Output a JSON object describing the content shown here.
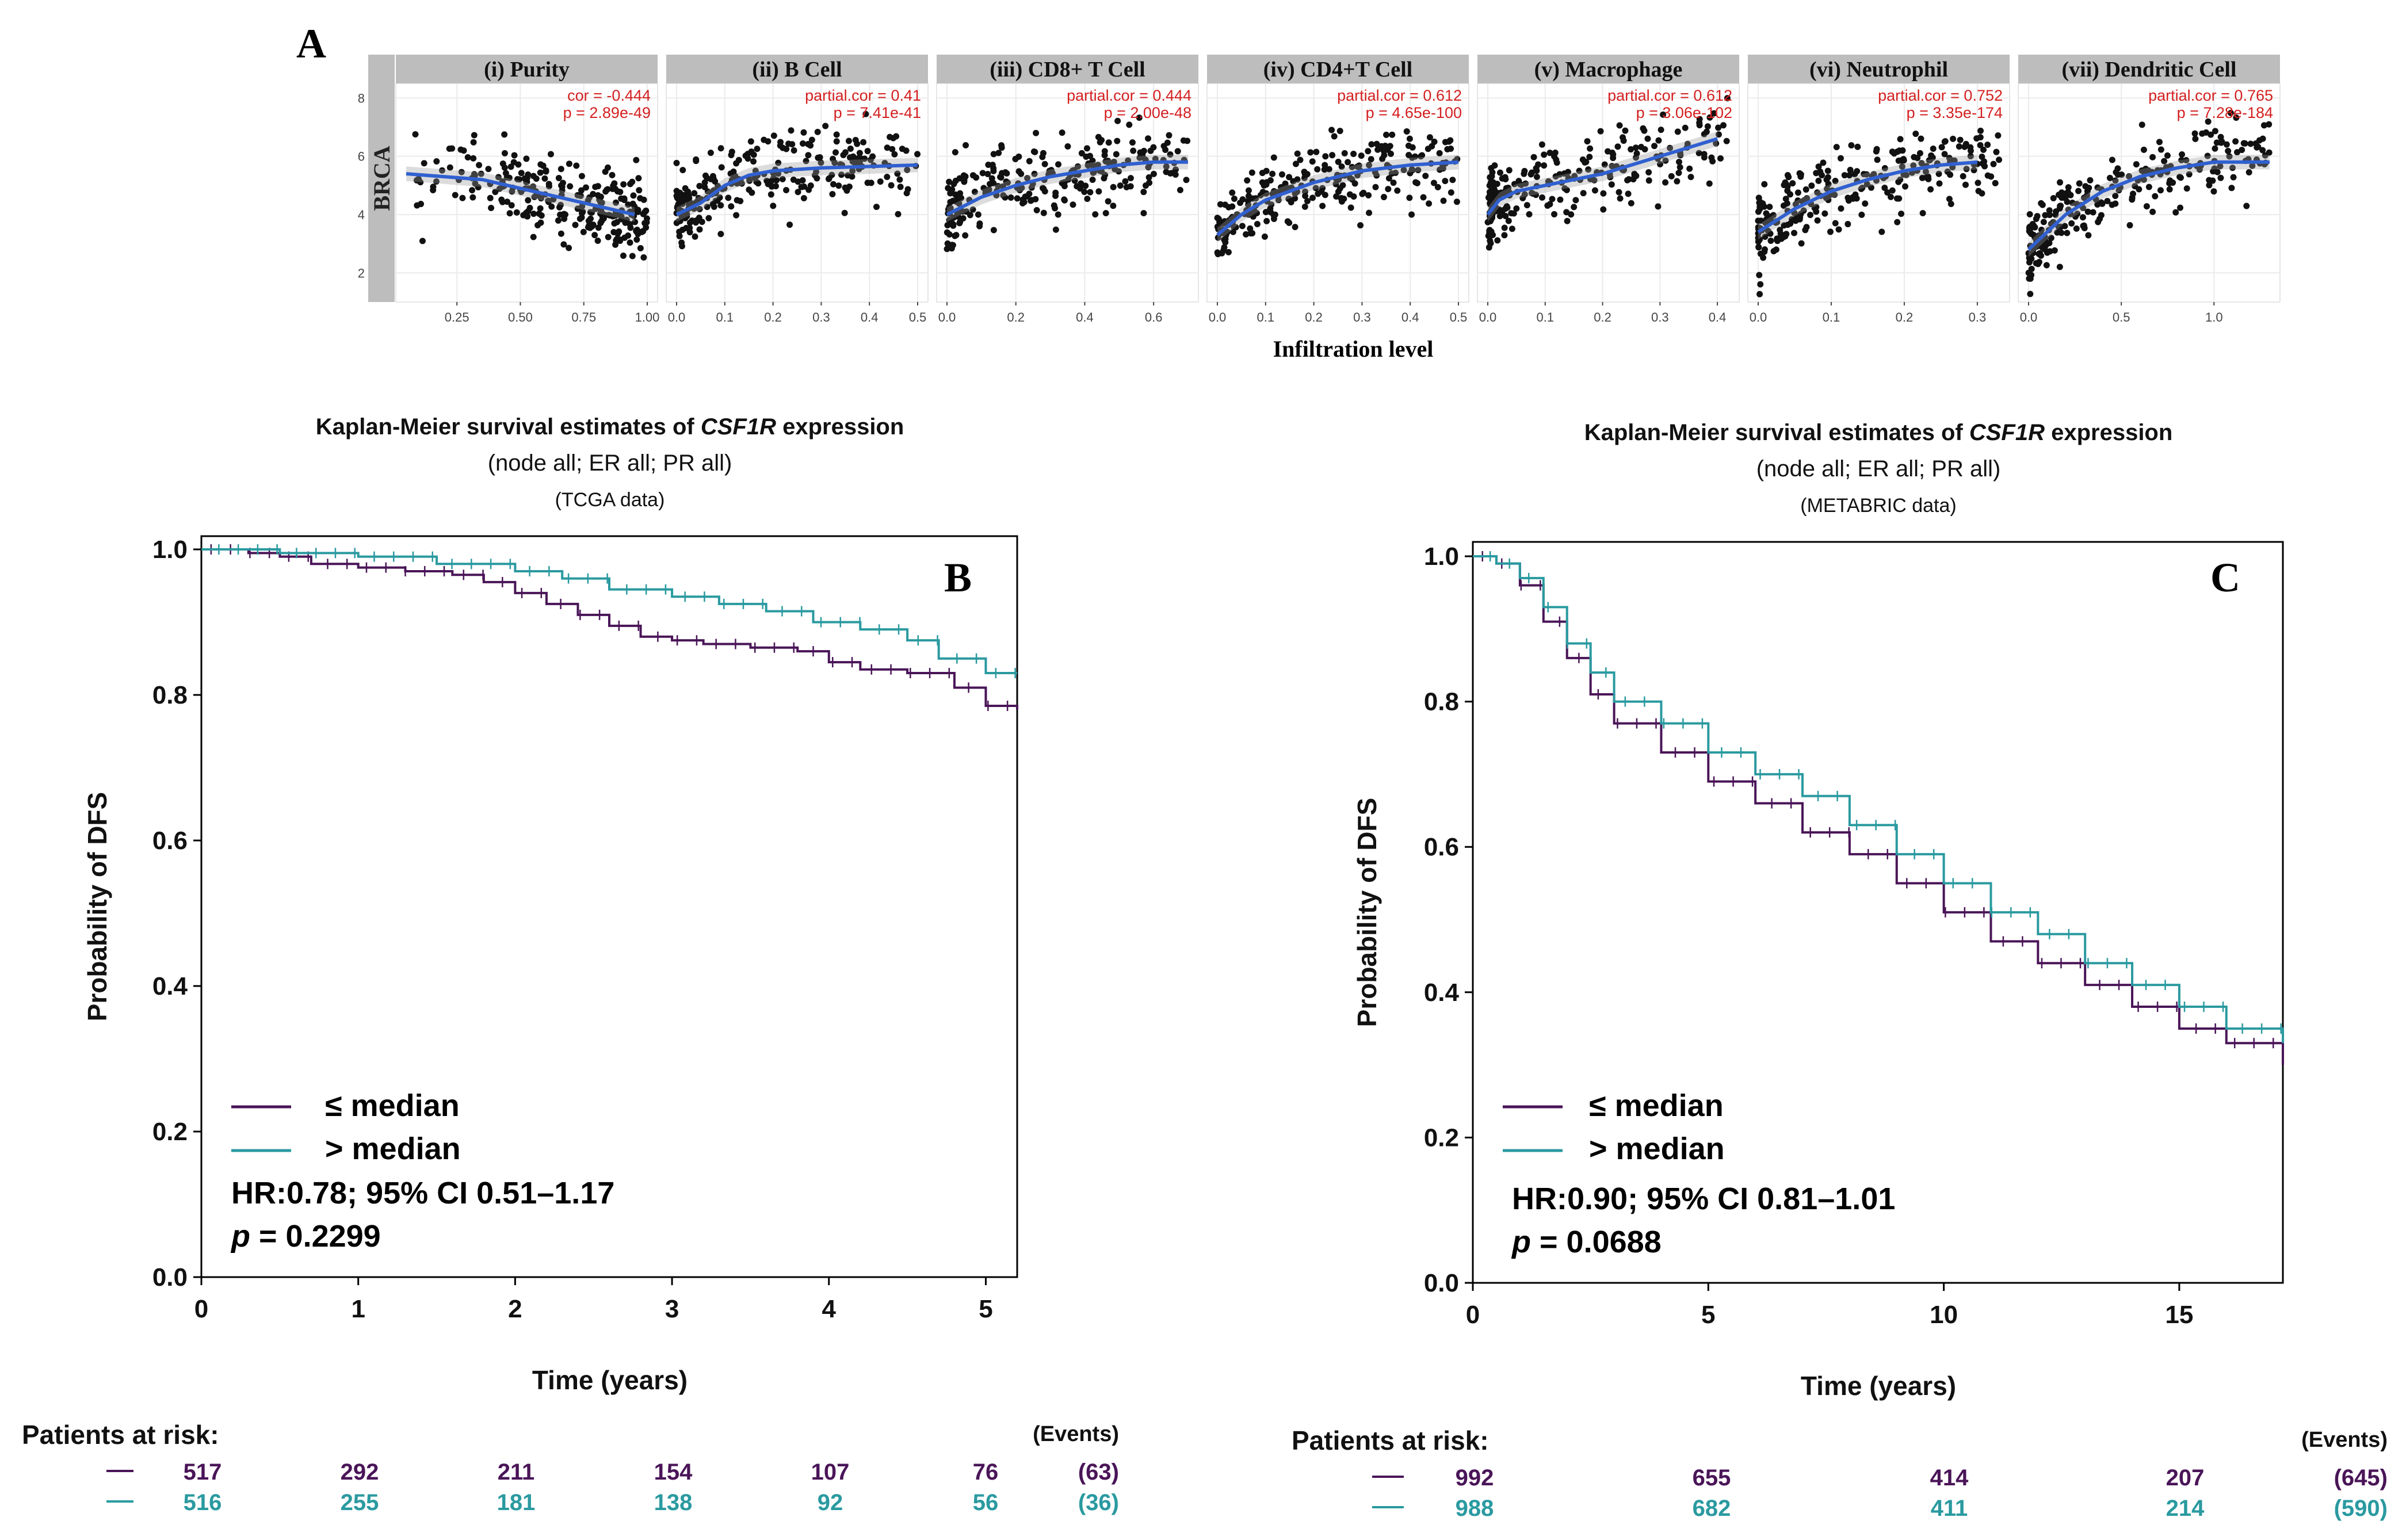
{
  "colors": {
    "low": "#4a1558",
    "high": "#2a9aa0",
    "fit": "#3060d0",
    "points": "#111111",
    "strip": "#bdbdbd",
    "corr_text": "#d42020",
    "grid": "#ebebeb"
  },
  "panel_a": {
    "letter": "A",
    "row_label": "BRCA",
    "xlabel": "Infiltration level",
    "y_ticks": [
      "2",
      "4",
      "6",
      "8"
    ],
    "panels": [
      {
        "title": "(i) Purity",
        "stat_label": "cor = -0.444",
        "p_label": "p = 2.89e-49",
        "x_ticks": [
          "0.25",
          "0.50",
          "0.75",
          "1.00"
        ],
        "xlim": [
          0.05,
          1.0
        ]
      },
      {
        "title": "(ii) B Cell",
        "stat_label": "partial.cor = 0.41",
        "p_label": "p = 7.41e-41",
        "x_ticks": [
          "0.0",
          "0.1",
          "0.2",
          "0.3",
          "0.4",
          "0.5"
        ],
        "xlim": [
          0.0,
          0.5
        ]
      },
      {
        "title": "(iii) CD8+ T Cell",
        "stat_label": "partial.cor = 0.444",
        "p_label": "p = 2.00e-48",
        "x_ticks": [
          "0.0",
          "0.2",
          "0.4",
          "0.6"
        ],
        "xlim": [
          0.0,
          0.7
        ]
      },
      {
        "title": "(iv) CD4+T Cell",
        "stat_label": "partial.cor = 0.612",
        "p_label": "p = 4.65e-100",
        "x_ticks": [
          "0.0",
          "0.1",
          "0.2",
          "0.3",
          "0.4",
          "0.5"
        ],
        "xlim": [
          0.0,
          0.5
        ]
      },
      {
        "title": "(v) Macrophage",
        "stat_label": "partial.cor = 0.612",
        "p_label": "p = 3.06e-102",
        "x_ticks": [
          "0.0",
          "0.1",
          "0.2",
          "0.3",
          "0.4"
        ],
        "xlim": [
          0.0,
          0.42
        ]
      },
      {
        "title": "(vi) Neutrophil",
        "stat_label": "partial.cor = 0.752",
        "p_label": "p = 3.35e-174",
        "x_ticks": [
          "0.0",
          "0.1",
          "0.2",
          "0.3"
        ],
        "xlim": [
          0.0,
          0.33
        ]
      },
      {
        "title": "(vii) Dendritic Cell",
        "stat_label": "partial.cor = 0.765",
        "p_label": "p = 7.28e-184",
        "x_ticks": [
          "0.0",
          "0.5",
          "1.0"
        ],
        "xlim": [
          0.0,
          1.3
        ]
      }
    ]
  },
  "panel_b": {
    "letter": "B",
    "title_prefix": "Kaplan-Meier survival estimates of ",
    "title_gene": "CSF1R",
    "title_suffix": " expression",
    "subtitle": "(node all; ER all; PR all)",
    "source": "(TCGA data)",
    "ylabel": "Probability of DFS",
    "xlabel": "Time (years)",
    "legend_low": "≤  median",
    "legend_high": "> median",
    "hr_text": "HR:0.78; 95% CI 0.51–1.17",
    "p_prefix": "p",
    "p_text": " = 0.2299",
    "risk_title": "Patients at risk:",
    "events_label": "(Events)",
    "low_risk": [
      "517",
      "292",
      "211",
      "154",
      "107",
      "76"
    ],
    "low_events": "(63)",
    "high_risk": [
      "516",
      "255",
      "181",
      "138",
      "92",
      "56"
    ],
    "high_events": "(36)"
  },
  "panel_c": {
    "letter": "C",
    "title_prefix": "Kaplan-Meier survival estimates of ",
    "title_gene": "CSF1R",
    "title_suffix": " expression",
    "subtitle": "(node all; ER all; PR all)",
    "source": "(METABRIC data)",
    "ylabel": "Probability of DFS",
    "xlabel": "Time (years)",
    "legend_low": "≤  median",
    "legend_high": "> median",
    "hr_text": "HR:0.90; 95% CI 0.81–1.01",
    "p_prefix": "p",
    "p_text": " = 0.0688",
    "risk_title": "Patients at risk:",
    "events_label": "(Events)",
    "low_risk": [
      "992",
      "655",
      "414",
      "207"
    ],
    "low_events": "(645)",
    "high_risk": [
      "988",
      "682",
      "411",
      "214"
    ],
    "high_events": "(590)"
  },
  "chart_data": [
    {
      "type": "scatter",
      "title": "(i) Purity",
      "xlabel": "Infiltration level",
      "ylabel": "BRCA",
      "xlim": [
        0.05,
        1.0
      ],
      "ylim": [
        1,
        8.5
      ],
      "fit": {
        "x": [
          0.05,
          0.2,
          0.35,
          0.5,
          0.65,
          0.8,
          0.95
        ],
        "y": [
          5.4,
          5.3,
          5.2,
          4.9,
          4.6,
          4.3,
          4.0
        ]
      },
      "cor": -0.444,
      "p": "2.89e-49"
    },
    {
      "type": "scatter",
      "title": "(ii) B Cell",
      "xlabel": "Infiltration level",
      "ylabel": "BRCA",
      "xlim": [
        0.0,
        0.5
      ],
      "ylim": [
        1,
        8.5
      ],
      "fit": {
        "x": [
          0.0,
          0.05,
          0.1,
          0.15,
          0.2,
          0.3,
          0.4,
          0.5
        ],
        "y": [
          4.0,
          4.4,
          5.0,
          5.35,
          5.5,
          5.6,
          5.65,
          5.7
        ]
      },
      "partial_cor": 0.41,
      "p": "7.41e-41"
    },
    {
      "type": "scatter",
      "title": "(iii) CD8+ T Cell",
      "xlabel": "Infiltration level",
      "ylabel": "BRCA",
      "xlim": [
        0.0,
        0.7
      ],
      "ylim": [
        1,
        8.5
      ],
      "fit": {
        "x": [
          0.0,
          0.1,
          0.2,
          0.3,
          0.4,
          0.5,
          0.6,
          0.7
        ],
        "y": [
          4.0,
          4.6,
          5.0,
          5.3,
          5.5,
          5.7,
          5.8,
          5.8
        ]
      },
      "partial_cor": 0.444,
      "p": "2.00e-48"
    },
    {
      "type": "scatter",
      "title": "(iv) CD4+T Cell",
      "xlabel": "Infiltration level",
      "ylabel": "BRCA",
      "xlim": [
        0.0,
        0.5
      ],
      "ylim": [
        1,
        8.5
      ],
      "fit": {
        "x": [
          0.0,
          0.05,
          0.1,
          0.2,
          0.3,
          0.4,
          0.5
        ],
        "y": [
          3.3,
          4.0,
          4.5,
          5.1,
          5.5,
          5.7,
          5.8
        ]
      },
      "partial_cor": 0.612,
      "p": "4.65e-100"
    },
    {
      "type": "scatter",
      "title": "(v) Macrophage",
      "xlabel": "Infiltration level",
      "ylabel": "BRCA",
      "xlim": [
        0.0,
        0.42
      ],
      "ylim": [
        1,
        8.5
      ],
      "fit": {
        "x": [
          0.0,
          0.02,
          0.05,
          0.1,
          0.2,
          0.3,
          0.4
        ],
        "y": [
          4.0,
          4.5,
          4.8,
          5.0,
          5.4,
          6.0,
          6.6
        ]
      },
      "partial_cor": 0.612,
      "p": "3.06e-102"
    },
    {
      "type": "scatter",
      "title": "(vi) Neutrophil",
      "xlabel": "Infiltration level",
      "ylabel": "BRCA",
      "xlim": [
        0.0,
        0.33
      ],
      "ylim": [
        1,
        8.5
      ],
      "fit": {
        "x": [
          0.0,
          0.05,
          0.1,
          0.15,
          0.2,
          0.25,
          0.3
        ],
        "y": [
          3.4,
          4.2,
          4.8,
          5.2,
          5.5,
          5.7,
          5.8
        ]
      },
      "partial_cor": 0.752,
      "p": "3.35e-174"
    },
    {
      "type": "scatter",
      "title": "(vii) Dendritic Cell",
      "xlabel": "Infiltration level",
      "ylabel": "BRCA",
      "xlim": [
        0.0,
        1.3
      ],
      "ylim": [
        1,
        8.5
      ],
      "fit": {
        "x": [
          0.0,
          0.2,
          0.4,
          0.6,
          0.8,
          1.0,
          1.3
        ],
        "y": [
          2.8,
          4.0,
          4.8,
          5.3,
          5.6,
          5.8,
          5.8
        ]
      },
      "partial_cor": 0.765,
      "p": "7.28e-184"
    },
    {
      "type": "line",
      "title": "Kaplan-Meier survival estimates of CSF1R expression (node all; ER all; PR all) (TCGA data)",
      "xlabel": "Time (years)",
      "ylabel": "Probability of DFS",
      "xlim": [
        0,
        5.2
      ],
      "ylim": [
        0,
        1.0
      ],
      "x_ticks": [
        0,
        1,
        2,
        3,
        4,
        5
      ],
      "y_ticks": [
        0.0,
        0.2,
        0.4,
        0.6,
        0.8,
        1.0
      ],
      "series": [
        {
          "name": "≤ median",
          "x": [
            0,
            0.3,
            0.5,
            0.7,
            1.0,
            1.3,
            1.6,
            1.8,
            2.0,
            2.2,
            2.4,
            2.6,
            2.8,
            3.0,
            3.2,
            3.5,
            3.8,
            4.0,
            4.2,
            4.5,
            4.8,
            5.0,
            5.2
          ],
          "y": [
            1.0,
            0.995,
            0.99,
            0.98,
            0.975,
            0.97,
            0.965,
            0.955,
            0.94,
            0.925,
            0.91,
            0.895,
            0.88,
            0.875,
            0.87,
            0.865,
            0.86,
            0.845,
            0.835,
            0.83,
            0.81,
            0.785,
            0.78
          ]
        },
        {
          "name": "> median",
          "x": [
            0,
            0.5,
            1.0,
            1.5,
            2.0,
            2.3,
            2.6,
            3.0,
            3.3,
            3.6,
            3.9,
            4.2,
            4.5,
            4.7,
            5.0,
            5.2
          ],
          "y": [
            1.0,
            0.995,
            0.99,
            0.98,
            0.97,
            0.96,
            0.945,
            0.935,
            0.925,
            0.915,
            0.9,
            0.89,
            0.875,
            0.85,
            0.83,
            0.83
          ]
        }
      ],
      "hr": 0.78,
      "ci": [
        0.51,
        1.17
      ],
      "p": 0.2299
    },
    {
      "type": "line",
      "title": "Kaplan-Meier survival estimates of CSF1R expression (node all; ER all; PR all) (METABRIC data)",
      "xlabel": "Time (years)",
      "ylabel": "Probability of DFS",
      "xlim": [
        0,
        17.2
      ],
      "ylim": [
        0,
        1.0
      ],
      "x_ticks": [
        0,
        5,
        10,
        15
      ],
      "y_ticks": [
        0.0,
        0.2,
        0.4,
        0.6,
        0.8,
        1.0
      ],
      "series": [
        {
          "name": "≤ median",
          "x": [
            0,
            0.5,
            1,
            1.5,
            2,
            2.5,
            3,
            4,
            5,
            6,
            7,
            8,
            9,
            10,
            11,
            12,
            13,
            14,
            15,
            16,
            17.2
          ],
          "y": [
            1.0,
            0.99,
            0.96,
            0.91,
            0.86,
            0.81,
            0.77,
            0.73,
            0.69,
            0.66,
            0.62,
            0.59,
            0.55,
            0.51,
            0.47,
            0.44,
            0.41,
            0.38,
            0.35,
            0.33,
            0.3
          ]
        },
        {
          "name": "> median",
          "x": [
            0,
            0.5,
            1,
            1.5,
            2,
            2.5,
            3,
            4,
            5,
            6,
            7,
            8,
            9,
            10,
            11,
            12,
            13,
            14,
            15,
            16,
            17.2
          ],
          "y": [
            1.0,
            0.99,
            0.97,
            0.93,
            0.88,
            0.84,
            0.8,
            0.77,
            0.73,
            0.7,
            0.67,
            0.63,
            0.59,
            0.55,
            0.51,
            0.48,
            0.44,
            0.41,
            0.38,
            0.35,
            0.33
          ]
        }
      ],
      "hr": 0.9,
      "ci": [
        0.81,
        1.01
      ],
      "p": 0.0688
    }
  ]
}
